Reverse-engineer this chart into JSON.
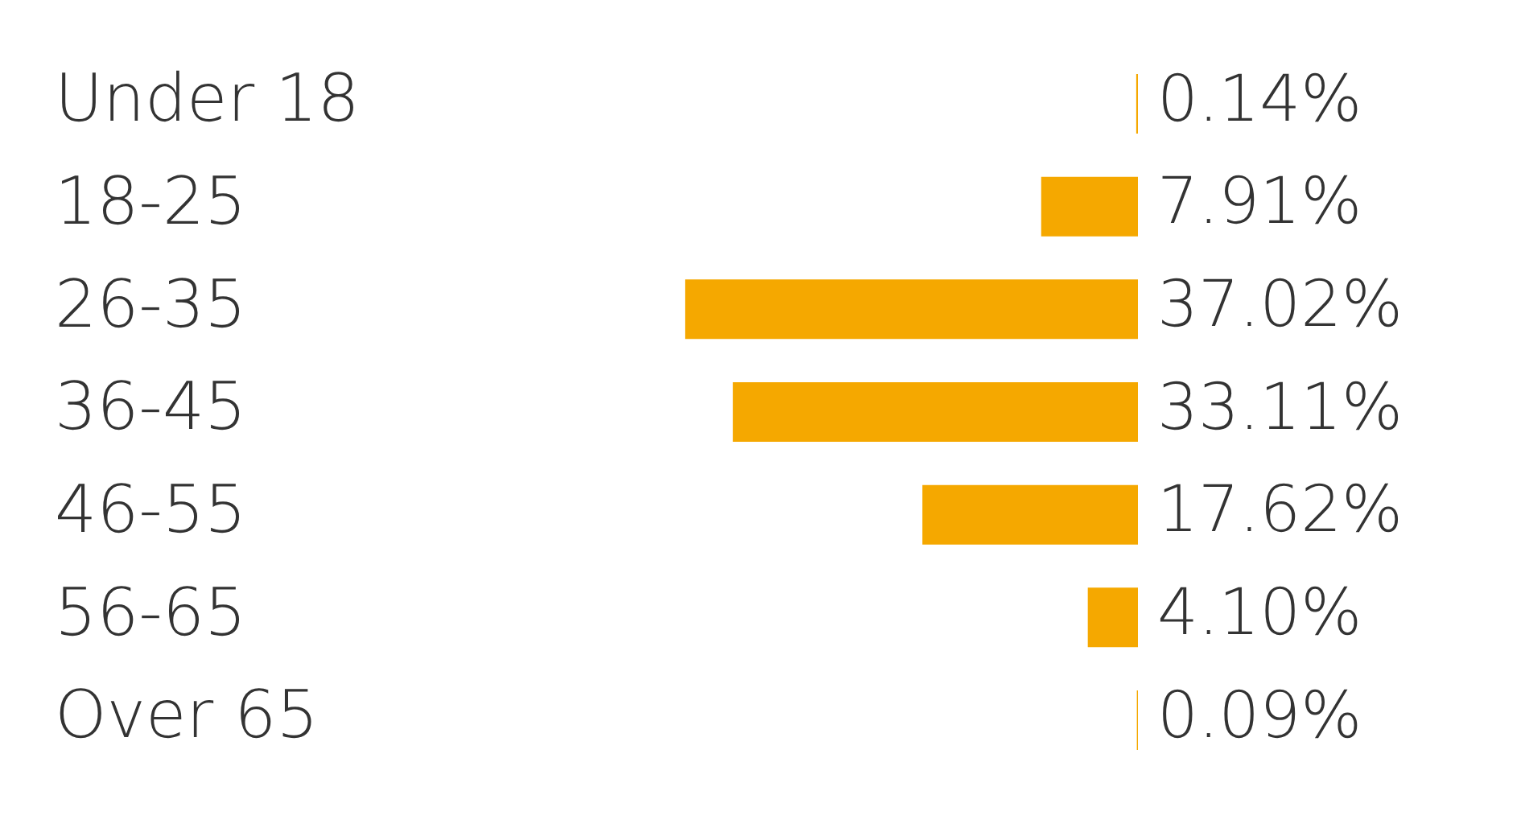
{
  "chart_data": {
    "type": "bar",
    "orientation": "horizontal",
    "categories": [
      "Under 18",
      "18-25",
      "26-35",
      "36-45",
      "46-55",
      "56-65",
      "Over 65"
    ],
    "values": [
      0.14,
      7.91,
      37.02,
      33.11,
      17.62,
      4.1,
      0.09
    ],
    "value_labels": [
      "0.14%",
      "7.91%",
      "37.02%",
      "33.11%",
      "17.62%",
      "4.10%",
      "0.09%"
    ],
    "color": "#f5a800",
    "tick_labels": "y"
  }
}
